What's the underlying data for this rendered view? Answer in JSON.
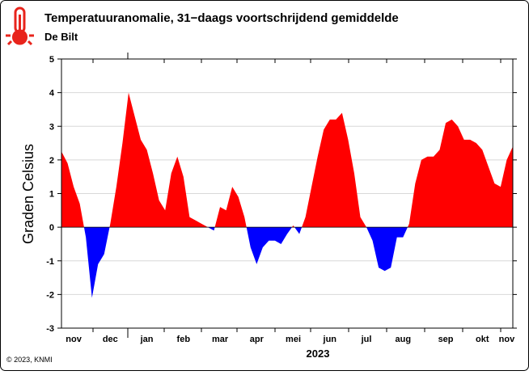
{
  "chart_data": {
    "type": "area",
    "title": "Temperatuuranomalie, 31−daags voortschrijdend gemiddelde",
    "subtitle": "De Bilt",
    "ylabel": "Graden Celsius",
    "xlabel": "2023",
    "footer": "© 2023, KNMI",
    "categories": [
      null,
      null,
      "nov",
      null,
      null,
      null,
      null,
      null,
      "dec",
      null,
      null,
      null,
      null,
      null,
      "jan",
      null,
      null,
      null,
      null,
      null,
      "feb",
      null,
      null,
      null,
      null,
      null,
      "mar",
      null,
      null,
      null,
      null,
      null,
      "apr",
      null,
      null,
      null,
      null,
      null,
      "mei",
      null,
      null,
      null,
      null,
      null,
      "jun",
      null,
      null,
      null,
      null,
      null,
      "jul",
      null,
      null,
      null,
      null,
      null,
      "aug",
      null,
      null,
      null,
      null,
      null,
      null,
      "sep",
      null,
      null,
      null,
      null,
      null,
      "okt",
      null,
      null,
      null,
      "nov",
      null
    ],
    "values": [
      2.25,
      1.9,
      1.2,
      0.7,
      -0.3,
      -2.1,
      -1.1,
      -0.8,
      0.1,
      1.2,
      2.5,
      4.0,
      3.3,
      2.6,
      2.3,
      1.6,
      0.8,
      0.5,
      1.6,
      2.1,
      1.5,
      0.3,
      0.2,
      0.1,
      0.0,
      -0.1,
      0.6,
      0.5,
      1.2,
      0.9,
      0.3,
      -0.6,
      -1.1,
      -0.6,
      -0.4,
      -0.4,
      -0.5,
      -0.2,
      0.05,
      -0.2,
      0.3,
      1.2,
      2.1,
      2.9,
      3.2,
      3.2,
      3.4,
      2.6,
      1.6,
      0.3,
      0.0,
      -0.4,
      -1.2,
      -1.3,
      -1.2,
      -0.3,
      -0.3,
      0.1,
      1.3,
      2.0,
      2.1,
      2.1,
      2.3,
      3.1,
      3.2,
      3.0,
      2.6,
      2.6,
      2.5,
      2.3,
      1.8,
      1.3,
      1.2,
      2.0,
      2.4
    ],
    "colors": {
      "positive": "#ff0000",
      "negative": "#0000ff"
    },
    "ylim": [
      -3,
      5
    ],
    "yticks": [
      -3,
      -2,
      -1,
      0,
      1,
      2,
      3,
      4,
      5
    ]
  }
}
